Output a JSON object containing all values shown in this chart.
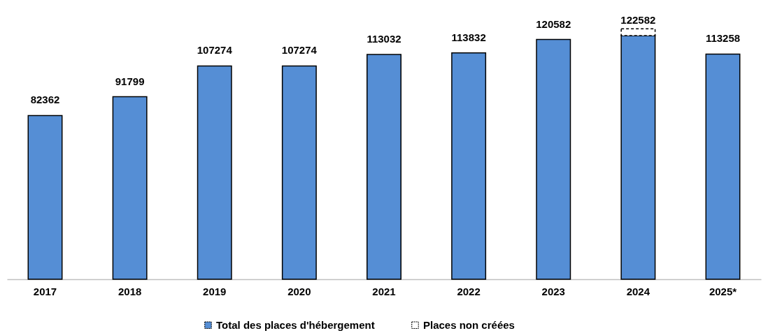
{
  "chart_data": {
    "type": "bar",
    "stacked": true,
    "legend": "bottom",
    "categories": [
      "2017",
      "2018",
      "2019",
      "2020",
      "2021",
      "2022",
      "2023",
      "2024",
      "2025*"
    ],
    "series": [
      {
        "name": "Total des places d'hébergement",
        "color": "#558ed5",
        "values": [
          82362,
          91799,
          107274,
          107274,
          113032,
          113832,
          120582,
          122582,
          113258
        ],
        "value_labels": [
          "82362",
          "91799",
          "107274",
          "107274",
          "113032",
          "113832",
          "120582",
          "122582",
          "113258"
        ]
      },
      {
        "name": "Places non créées",
        "color": "#ffffff",
        "values": [
          null,
          null,
          null,
          null,
          null,
          null,
          null,
          3400,
          null
        ]
      }
    ]
  }
}
